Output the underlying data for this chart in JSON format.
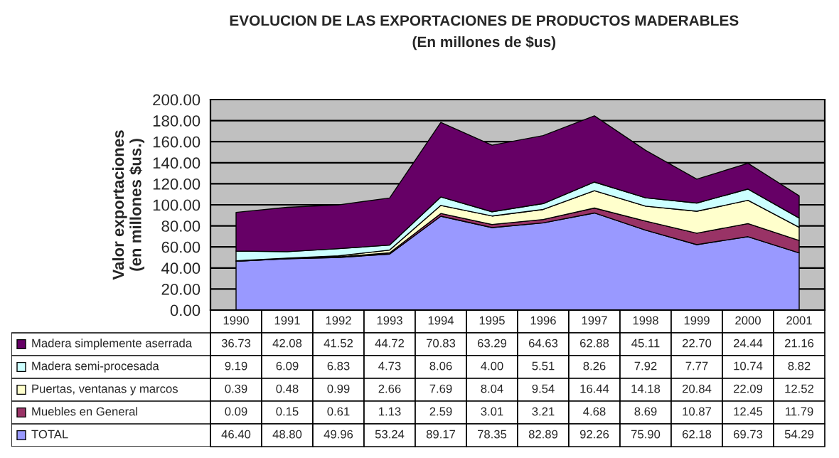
{
  "chart_data": {
    "type": "area",
    "title": "EVOLUCION DE LAS EXPORTACIONES DE PRODUCTOS MADERABLES",
    "subtitle": "(En millones de $us)",
    "ylabel": "Valor exportaciones\n(en millones $us.)",
    "categories": [
      "1990",
      "1991",
      "1992",
      "1993",
      "1994",
      "1995",
      "1996",
      "1997",
      "1998",
      "1999",
      "2000",
      "2001"
    ],
    "stacked": true,
    "series": [
      {
        "name": "TOTAL",
        "color": "#9999ff",
        "values": [
          46.4,
          48.8,
          49.96,
          53.24,
          89.17,
          78.35,
          82.89,
          92.26,
          75.9,
          62.18,
          69.73,
          54.29
        ],
        "value_labels": [
          "46.40",
          "48.80",
          "49.96",
          "53.24",
          "89.17",
          "78.35",
          "82.89",
          "92.26",
          "75.90",
          "62.18",
          "69.73",
          "54.29"
        ]
      },
      {
        "name": "Muebles en General",
        "color": "#993366",
        "values": [
          0.09,
          0.15,
          0.61,
          1.13,
          2.59,
          3.01,
          3.21,
          4.68,
          8.69,
          10.87,
          12.45,
          11.79
        ],
        "value_labels": [
          "0.09",
          "0.15",
          "0.61",
          "1.13",
          "2.59",
          "3.01",
          "3.21",
          "4.68",
          "8.69",
          "10.87",
          "12.45",
          "11.79"
        ]
      },
      {
        "name": "Puertas, ventanas y marcos",
        "color": "#ffffcc",
        "values": [
          0.39,
          0.48,
          0.99,
          2.66,
          7.69,
          8.04,
          9.54,
          16.44,
          14.18,
          20.84,
          22.09,
          12.52
        ],
        "value_labels": [
          "0.39",
          "0.48",
          "0.99",
          "2.66",
          "7.69",
          "8.04",
          "9.54",
          "16.44",
          "14.18",
          "20.84",
          "22.09",
          "12.52"
        ]
      },
      {
        "name": "Madera semi-procesada",
        "color": "#ccffff",
        "values": [
          9.19,
          6.09,
          6.83,
          4.73,
          8.06,
          4.0,
          5.51,
          8.26,
          7.92,
          7.77,
          10.74,
          8.82
        ],
        "value_labels": [
          "9.19",
          "6.09",
          "6.83",
          "4.73",
          "8.06",
          "4.00",
          "5.51",
          "8.26",
          "7.92",
          "7.77",
          "10.74",
          "8.82"
        ]
      },
      {
        "name": "Madera simplemente aserrada",
        "color": "#660066",
        "values": [
          36.73,
          42.08,
          41.52,
          44.72,
          70.83,
          63.29,
          64.63,
          62.88,
          45.11,
          22.7,
          24.44,
          21.16
        ],
        "value_labels": [
          "36.73",
          "42.08",
          "41.52",
          "44.72",
          "70.83",
          "63.29",
          "64.63",
          "62.88",
          "45.11",
          "22.70",
          "24.44",
          "21.16"
        ]
      }
    ],
    "ylim": [
      0,
      200
    ],
    "yticks": [
      {
        "value": 0,
        "label": "0.00"
      },
      {
        "value": 20,
        "label": "20.00"
      },
      {
        "value": 40,
        "label": "40.00"
      },
      {
        "value": 60,
        "label": "60.00"
      },
      {
        "value": 80,
        "label": "80.00"
      },
      {
        "value": 100,
        "label": "100.00"
      },
      {
        "value": 120,
        "label": "120.00"
      },
      {
        "value": 140,
        "label": "140.00"
      },
      {
        "value": 160,
        "label": "160.00"
      },
      {
        "value": 180,
        "label": "180.00"
      },
      {
        "value": 200,
        "label": "200.00"
      }
    ],
    "grid": "y",
    "legend": "bottom",
    "tick_labels": "y"
  }
}
